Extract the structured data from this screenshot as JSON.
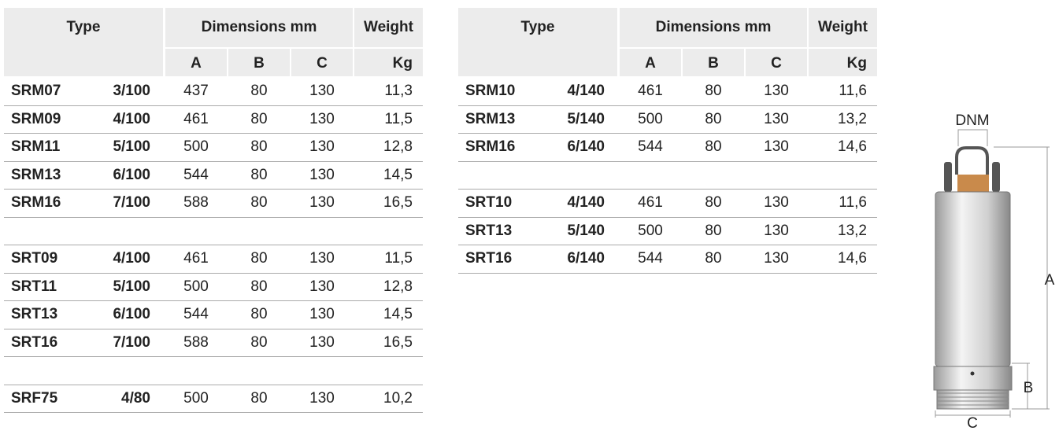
{
  "tables": [
    {
      "header": {
        "type": "Type",
        "dimensions": "Dimensions mm",
        "weight": "Weight",
        "a": "A",
        "b": "B",
        "c": "C",
        "kg": "Kg"
      },
      "groups": [
        [
          [
            "SRM07",
            "3/100",
            "437",
            "80",
            "130",
            "11,3"
          ],
          [
            "SRM09",
            "4/100",
            "461",
            "80",
            "130",
            "11,5"
          ],
          [
            "SRM11",
            "5/100",
            "500",
            "80",
            "130",
            "12,8"
          ],
          [
            "SRM13",
            "6/100",
            "544",
            "80",
            "130",
            "14,5"
          ],
          [
            "SRM16",
            "7/100",
            "588",
            "80",
            "130",
            "16,5"
          ]
        ],
        [
          [
            "SRT09",
            "4/100",
            "461",
            "80",
            "130",
            "11,5"
          ],
          [
            "SRT11",
            "5/100",
            "500",
            "80",
            "130",
            "12,8"
          ],
          [
            "SRT13",
            "6/100",
            "544",
            "80",
            "130",
            "14,5"
          ],
          [
            "SRT16",
            "7/100",
            "588",
            "80",
            "130",
            "16,5"
          ]
        ],
        [
          [
            "SRF75",
            "4/80",
            "500",
            "80",
            "130",
            "10,2"
          ]
        ]
      ]
    },
    {
      "header": {
        "type": "Type",
        "dimensions": "Dimensions mm",
        "weight": "Weight",
        "a": "A",
        "b": "B",
        "c": "C",
        "kg": "Kg"
      },
      "groups": [
        [
          [
            "SRM10",
            "4/140",
            "461",
            "80",
            "130",
            "11,6"
          ],
          [
            "SRM13",
            "5/140",
            "500",
            "80",
            "130",
            "13,2"
          ],
          [
            "SRM16",
            "6/140",
            "544",
            "80",
            "130",
            "14,6"
          ]
        ],
        [
          [
            "SRT10",
            "4/140",
            "461",
            "80",
            "130",
            "11,6"
          ],
          [
            "SRT13",
            "5/140",
            "500",
            "80",
            "130",
            "13,2"
          ],
          [
            "SRT16",
            "6/140",
            "544",
            "80",
            "130",
            "14,6"
          ]
        ]
      ]
    }
  ],
  "diagram": {
    "dnm": "DNM",
    "a": "A",
    "b": "B",
    "c": "C"
  }
}
